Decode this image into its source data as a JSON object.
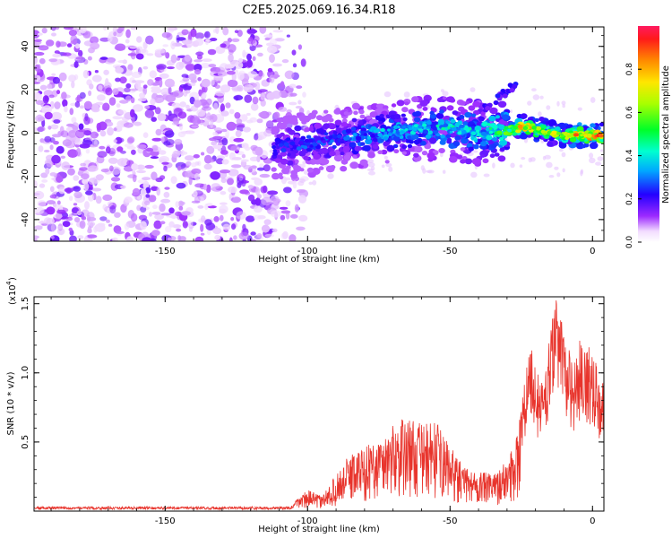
{
  "figure": {
    "title": "C2E5.2025.069.16.34.R18"
  },
  "chart_data": [
    {
      "type": "heatmap",
      "xlabel": "Height of straight line (km)",
      "ylabel": "Frequency (Hz)",
      "xlim": [
        -196,
        4
      ],
      "ylim": [
        -50,
        49
      ],
      "xticks": [
        "-150",
        "-100",
        "-50",
        "0"
      ],
      "yticks": [
        "40",
        "20",
        "0",
        "-20",
        "-40"
      ],
      "colorbar": {
        "label": "Normalized spectral amplitude",
        "range": [
          0,
          1
        ],
        "ticks": [
          "0.0",
          "0.2",
          "0.4",
          "0.6",
          "0.8"
        ]
      },
      "ridge": {
        "x": [
          -110,
          -100,
          -90,
          -80,
          -70,
          -60,
          -50,
          -40,
          -30,
          -25,
          -20,
          -15,
          -10,
          -5,
          0,
          3
        ],
        "y": [
          -7,
          -5,
          -3,
          -1,
          1,
          2,
          2,
          0,
          1,
          3,
          2,
          0,
          -1,
          -1,
          -1,
          -1
        ],
        "amplitude": [
          0.25,
          0.3,
          0.3,
          0.35,
          0.4,
          0.4,
          0.45,
          0.45,
          0.6,
          0.85,
          0.8,
          0.7,
          0.75,
          0.9,
          0.95,
          0.9
        ]
      },
      "noise_region_x": [
        -196,
        -105
      ]
    },
    {
      "type": "line",
      "xlabel": "Height of straight line (km)",
      "ylabel": "SNR (10 * v/v)",
      "y_multiplier": "(x10",
      "y_multiplier_exp": "4",
      "xlim": [
        -196,
        4
      ],
      "ylim": [
        0,
        1.55
      ],
      "xticks": [
        "-150",
        "-100",
        "-50",
        "0"
      ],
      "yticks": [
        "0.5",
        "1.0",
        "1.5"
      ],
      "color": "#e8342c",
      "envelope": {
        "x": [
          -196,
          -120,
          -106,
          -103,
          -100,
          -95,
          -90,
          -85,
          -80,
          -75,
          -70,
          -65,
          -60,
          -55,
          -50,
          -45,
          -40,
          -35,
          -30,
          -28,
          -25,
          -22,
          -20,
          -18,
          -15,
          -13,
          -10,
          -7,
          -5,
          -3,
          0,
          3
        ],
        "y": [
          0.02,
          0.02,
          0.03,
          0.1,
          0.15,
          0.1,
          0.25,
          0.4,
          0.45,
          0.5,
          0.6,
          0.65,
          0.6,
          0.62,
          0.45,
          0.3,
          0.28,
          0.25,
          0.35,
          0.45,
          0.75,
          1.2,
          1.0,
          0.9,
          1.2,
          1.5,
          1.3,
          1.0,
          1.2,
          1.1,
          1.15,
          0.9
        ]
      }
    }
  ]
}
